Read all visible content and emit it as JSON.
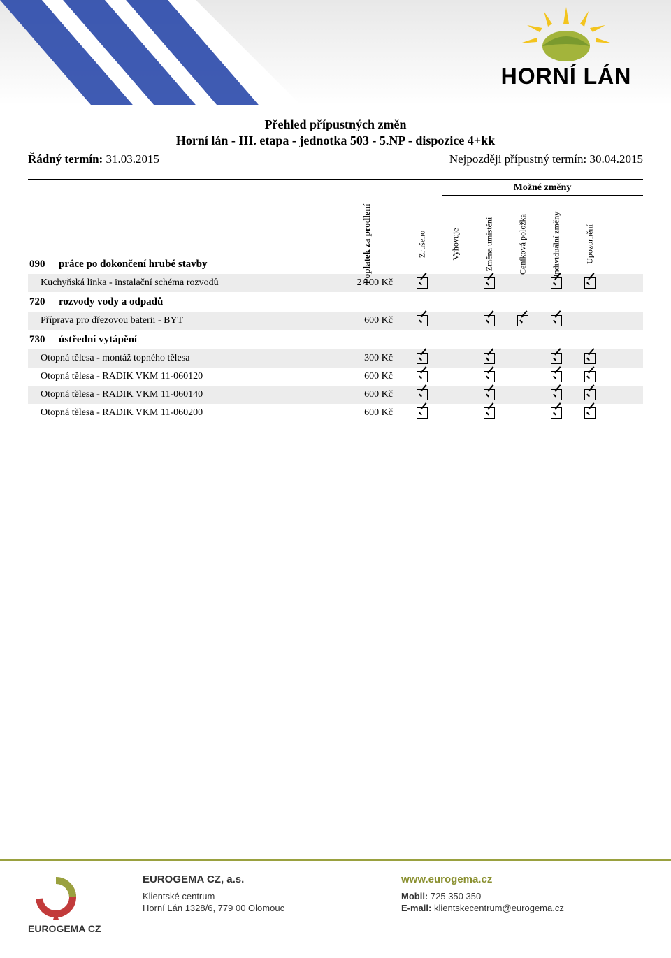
{
  "banner": {
    "logo_text": "HORNÍ LÁN",
    "ray_color": "#2b4aab",
    "sun_colors": {
      "core": "#a3b43b",
      "leaf": "#7a9a2e",
      "ray": "#f3c41e"
    },
    "bg_gradient_top": "#e8e8e8",
    "bg_gradient_bottom": "#ffffff"
  },
  "title": {
    "main": "Přehled přípustných změn",
    "sub": "Horní lán - III. etapa - jednotka 503 - 5.NP - dispozice 4+kk",
    "left_label": "Řádný termín:",
    "left_value": "31.03.2015",
    "right_label": "Nejpozději přípustný termín:",
    "right_value": "30.04.2015"
  },
  "table": {
    "price_header": "Poplatek za prodlení",
    "group_header": "Možné změny",
    "columns": [
      "Zrušeno",
      "Vyhovuje",
      "Změna umístění",
      "Ceníková položka",
      "Individuální změny",
      "Upozornění"
    ],
    "row_shade_color": "#ececec",
    "sections": [
      {
        "code": "090",
        "name": "práce po dokončení hrubé stavby",
        "rows": [
          {
            "desc": "Kuchyňská linka - instalační schéma rozvodů",
            "price": "2 100 Kč",
            "checks": [
              true,
              false,
              true,
              false,
              true,
              true
            ],
            "shade": true
          }
        ]
      },
      {
        "code": "720",
        "name": "rozvody vody a odpadů",
        "rows": [
          {
            "desc": "Příprava pro dřezovou baterii - BYT",
            "price": "600 Kč",
            "checks": [
              true,
              false,
              true,
              true,
              true,
              false
            ],
            "shade": true
          }
        ]
      },
      {
        "code": "730",
        "name": "ústřední vytápění",
        "rows": [
          {
            "desc": "Otopná tělesa - montáž topného tělesa",
            "price": "300 Kč",
            "checks": [
              true,
              false,
              true,
              false,
              true,
              true
            ],
            "shade": true
          },
          {
            "desc": "Otopná tělesa - RADIK VKM 11-060120",
            "price": "600 Kč",
            "checks": [
              true,
              false,
              true,
              false,
              true,
              true
            ],
            "shade": false
          },
          {
            "desc": "Otopná tělesa - RADIK VKM 11-060140",
            "price": "600 Kč",
            "checks": [
              true,
              false,
              true,
              false,
              true,
              true
            ],
            "shade": true
          },
          {
            "desc": "Otopná tělesa - RADIK VKM 11-060200",
            "price": "600 Kč",
            "checks": [
              true,
              false,
              true,
              false,
              true,
              true
            ],
            "shade": false
          }
        ]
      }
    ]
  },
  "footer": {
    "divider_color": "#9aa13f",
    "logo_text_top": "EUROGEMA CZ",
    "logo_colors": {
      "ring": "#c23b3b",
      "arc": "#9aa13f"
    },
    "company": "EUROGEMA CZ, a.s.",
    "addr1": "Klientské centrum",
    "addr2": "Horní Lán 1328/6, 779 00 Olomouc",
    "www": "www.eurogema.cz",
    "mobil_label": "Mobil:",
    "mobil_value": "725 350 350",
    "email_label": "E-mail:",
    "email_value": "klientskecentrum@eurogema.cz"
  }
}
